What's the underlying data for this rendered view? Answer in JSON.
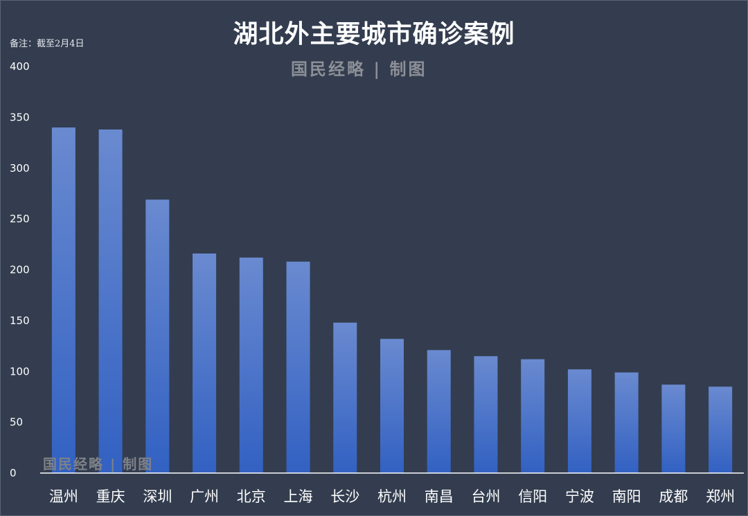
{
  "title": "湖北外主要城市确诊案例",
  "note": "备注：截至2月4日",
  "watermark": "国民经略 | 制图",
  "colors": {
    "background": "#333d4f",
    "bar_top": "#6a8ad0",
    "bar_bottom": "#3261c2",
    "axis": "#ffffff"
  },
  "chart_data": {
    "type": "bar",
    "title": "湖北外主要城市确诊案例",
    "categories": [
      "温州",
      "重庆",
      "深圳",
      "广州",
      "北京",
      "上海",
      "长沙",
      "杭州",
      "南昌",
      "台州",
      "信阳",
      "宁波",
      "南阳",
      "成都",
      "郑州"
    ],
    "values": [
      340,
      338,
      269,
      216,
      212,
      208,
      148,
      132,
      121,
      115,
      112,
      102,
      99,
      87,
      85
    ],
    "ylim": [
      0,
      400
    ],
    "yticks": [
      0,
      50,
      100,
      150,
      200,
      250,
      300,
      350,
      400
    ],
    "grid": false,
    "legend": "none"
  }
}
